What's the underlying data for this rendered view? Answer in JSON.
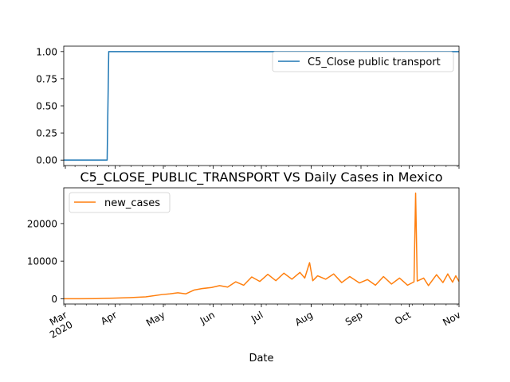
{
  "chart_data": [
    {
      "type": "line",
      "title": "",
      "xlabel": "",
      "ylabel": "",
      "ylim": [
        -0.05,
        1.05
      ],
      "yticks": [
        0.0,
        0.25,
        0.5,
        0.75,
        1.0
      ],
      "ytick_labels": [
        "0.00",
        "0.25",
        "0.50",
        "0.75",
        "1.00"
      ],
      "legend": "top-right",
      "series": [
        {
          "name": "C5_Close public transport",
          "color": "#1f77b4",
          "points": [
            [
              "2020-02-29",
              0
            ],
            [
              "2020-03-27",
              0
            ],
            [
              "2020-03-28",
              1
            ],
            [
              "2020-11-01",
              1
            ]
          ]
        }
      ]
    },
    {
      "type": "line",
      "title": "C5_CLOSE_PUBLIC_TRANSPORT VS Daily Cases in Mexico",
      "xlabel": "Date",
      "ylabel": "",
      "ylim": [
        -1400,
        29500
      ],
      "yticks": [
        0,
        10000,
        20000
      ],
      "ytick_labels": [
        "0",
        "10000",
        "20000"
      ],
      "xticks": [
        "2020-03-01",
        "2020-04-01",
        "2020-05-01",
        "2020-06-01",
        "2020-07-01",
        "2020-08-01",
        "2020-09-01",
        "2020-10-01",
        "2020-11-01"
      ],
      "xtick_labels": [
        "Mar\n2020",
        "Apr",
        "May",
        "Jun",
        "Jul",
        "Aug",
        "Sep",
        "Oct",
        "Nov"
      ],
      "legend": "top-left",
      "series": [
        {
          "name": "new_cases",
          "color": "#ff7f0e",
          "points": [
            [
              "2020-02-29",
              1
            ],
            [
              "2020-03-10",
              3
            ],
            [
              "2020-03-20",
              40
            ],
            [
              "2020-03-31",
              150
            ],
            [
              "2020-04-10",
              300
            ],
            [
              "2020-04-20",
              500
            ],
            [
              "2020-04-30",
              1100
            ],
            [
              "2020-05-05",
              1300
            ],
            [
              "2020-05-10",
              1600
            ],
            [
              "2020-05-15",
              1300
            ],
            [
              "2020-05-20",
              2300
            ],
            [
              "2020-05-25",
              2700
            ],
            [
              "2020-05-31",
              3000
            ],
            [
              "2020-06-05",
              3500
            ],
            [
              "2020-06-10",
              3100
            ],
            [
              "2020-06-15",
              4500
            ],
            [
              "2020-06-20",
              3600
            ],
            [
              "2020-06-25",
              5800
            ],
            [
              "2020-06-30",
              4600
            ],
            [
              "2020-07-05",
              6500
            ],
            [
              "2020-07-10",
              4800
            ],
            [
              "2020-07-15",
              6800
            ],
            [
              "2020-07-20",
              5200
            ],
            [
              "2020-07-25",
              7000
            ],
            [
              "2020-07-28",
              5500
            ],
            [
              "2020-07-31",
              9600
            ],
            [
              "2020-08-02",
              4800
            ],
            [
              "2020-08-05",
              6100
            ],
            [
              "2020-08-10",
              5200
            ],
            [
              "2020-08-15",
              6600
            ],
            [
              "2020-08-20",
              4300
            ],
            [
              "2020-08-25",
              5900
            ],
            [
              "2020-08-31",
              4200
            ],
            [
              "2020-09-05",
              5100
            ],
            [
              "2020-09-10",
              3600
            ],
            [
              "2020-09-15",
              5900
            ],
            [
              "2020-09-20",
              3900
            ],
            [
              "2020-09-25",
              5500
            ],
            [
              "2020-09-30",
              3600
            ],
            [
              "2020-10-04",
              4500
            ],
            [
              "2020-10-05",
              28100
            ],
            [
              "2020-10-06",
              4700
            ],
            [
              "2020-10-10",
              5500
            ],
            [
              "2020-10-13",
              3500
            ],
            [
              "2020-10-18",
              6400
            ],
            [
              "2020-10-22",
              4300
            ],
            [
              "2020-10-25",
              6600
            ],
            [
              "2020-10-28",
              4400
            ],
            [
              "2020-10-30",
              6100
            ],
            [
              "2020-11-01",
              4600
            ]
          ]
        }
      ]
    }
  ]
}
